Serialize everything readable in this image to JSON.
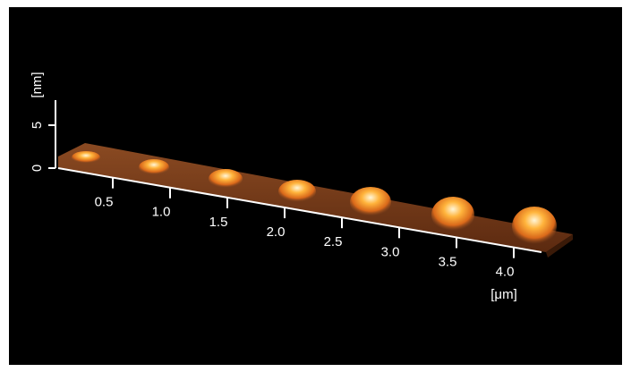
{
  "z_axis": {
    "unit": "[nm]",
    "ticks": [
      "0",
      "5"
    ]
  },
  "x_axis": {
    "unit": "[μm]",
    "ticks": [
      "0.5",
      "1.0",
      "1.5",
      "2.0",
      "2.5",
      "3.0",
      "3.5",
      "4.0"
    ]
  }
}
